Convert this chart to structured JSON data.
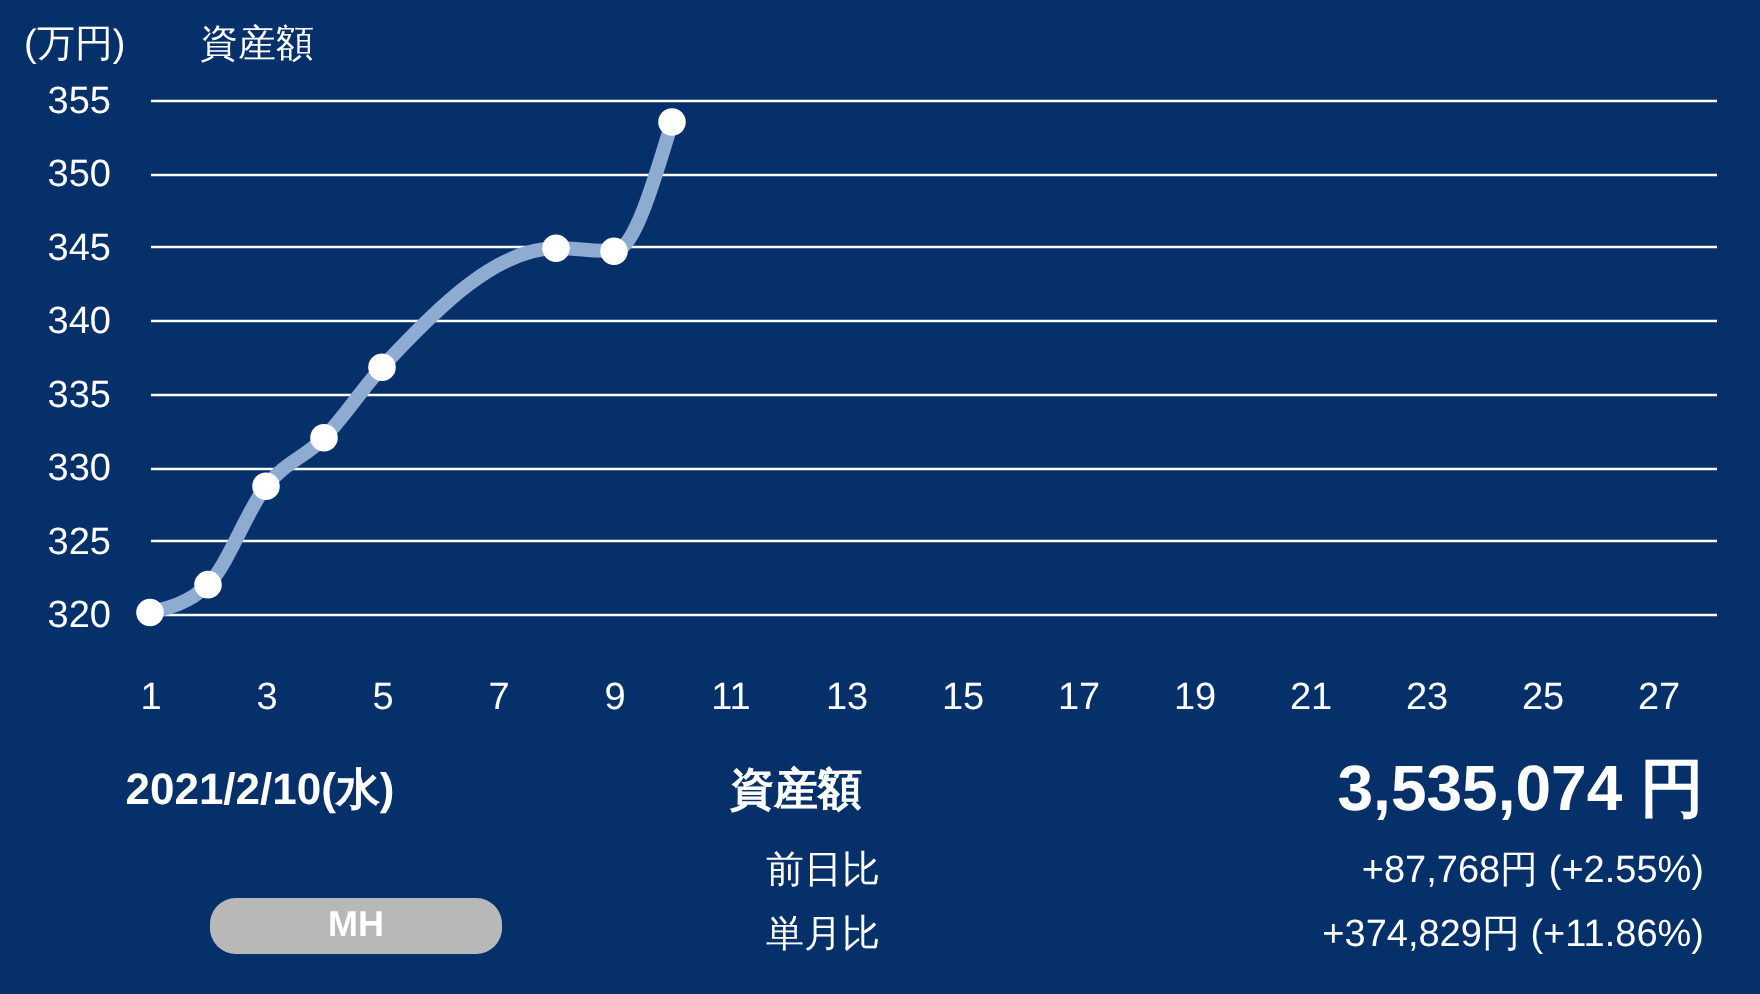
{
  "chart_data": {
    "type": "line",
    "title": "資産額",
    "ylabel": "(万円)",
    "x": [
      1,
      2,
      3,
      4,
      5,
      8,
      9,
      10
    ],
    "series": [
      {
        "color": "#8eabd2",
        "values": [
          320.1,
          322.0,
          328.7,
          332.0,
          336.8,
          344.9,
          344.7,
          353.5
        ]
      }
    ],
    "xlim": [
      1,
      28
    ],
    "xticks": [
      1,
      3,
      5,
      7,
      9,
      11,
      13,
      15,
      17,
      19,
      21,
      23,
      25,
      27
    ],
    "ylim": [
      320,
      355
    ],
    "yticks": [
      320,
      325,
      330,
      335,
      340,
      345,
      350,
      355
    ],
    "grid": "y",
    "marker": "circle",
    "line_style": "solid",
    "annotations": [
      "2021/2/10(水)",
      "資産額",
      "3,535,074 円",
      "前日比",
      "+87,768円 (+2.55%)",
      "単月比",
      "+374,829円 (+11.86%)",
      "MH"
    ]
  }
}
